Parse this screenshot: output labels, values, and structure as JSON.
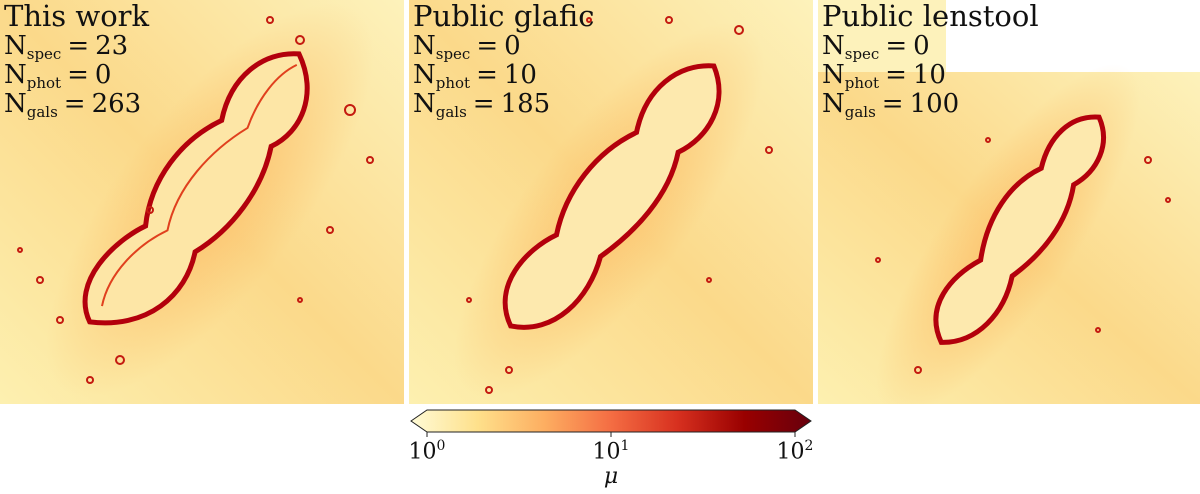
{
  "panels": [
    {
      "title": "This work",
      "n_spec": "23",
      "n_phot": "0",
      "n_gals": "263"
    },
    {
      "title": "Public glafic",
      "n_spec": "0",
      "n_phot": "10",
      "n_gals": "185"
    },
    {
      "title": "Public lenstool",
      "n_spec": "0",
      "n_phot": "10",
      "n_gals": "100"
    }
  ],
  "labels": {
    "n": "N",
    "spec": "spec",
    "phot": "phot",
    "gals": "gals",
    "eq": "="
  },
  "colorbar": {
    "label": "μ",
    "base": "10",
    "ticks": [
      {
        "exp": "0"
      },
      {
        "exp": "1"
      },
      {
        "exp": "2"
      }
    ],
    "range": [
      1,
      100
    ],
    "scale": "log",
    "colors": [
      "#fffbd6",
      "#fee08b",
      "#fdae61",
      "#f46d43",
      "#d7301f",
      "#990000",
      "#67000d"
    ]
  }
}
